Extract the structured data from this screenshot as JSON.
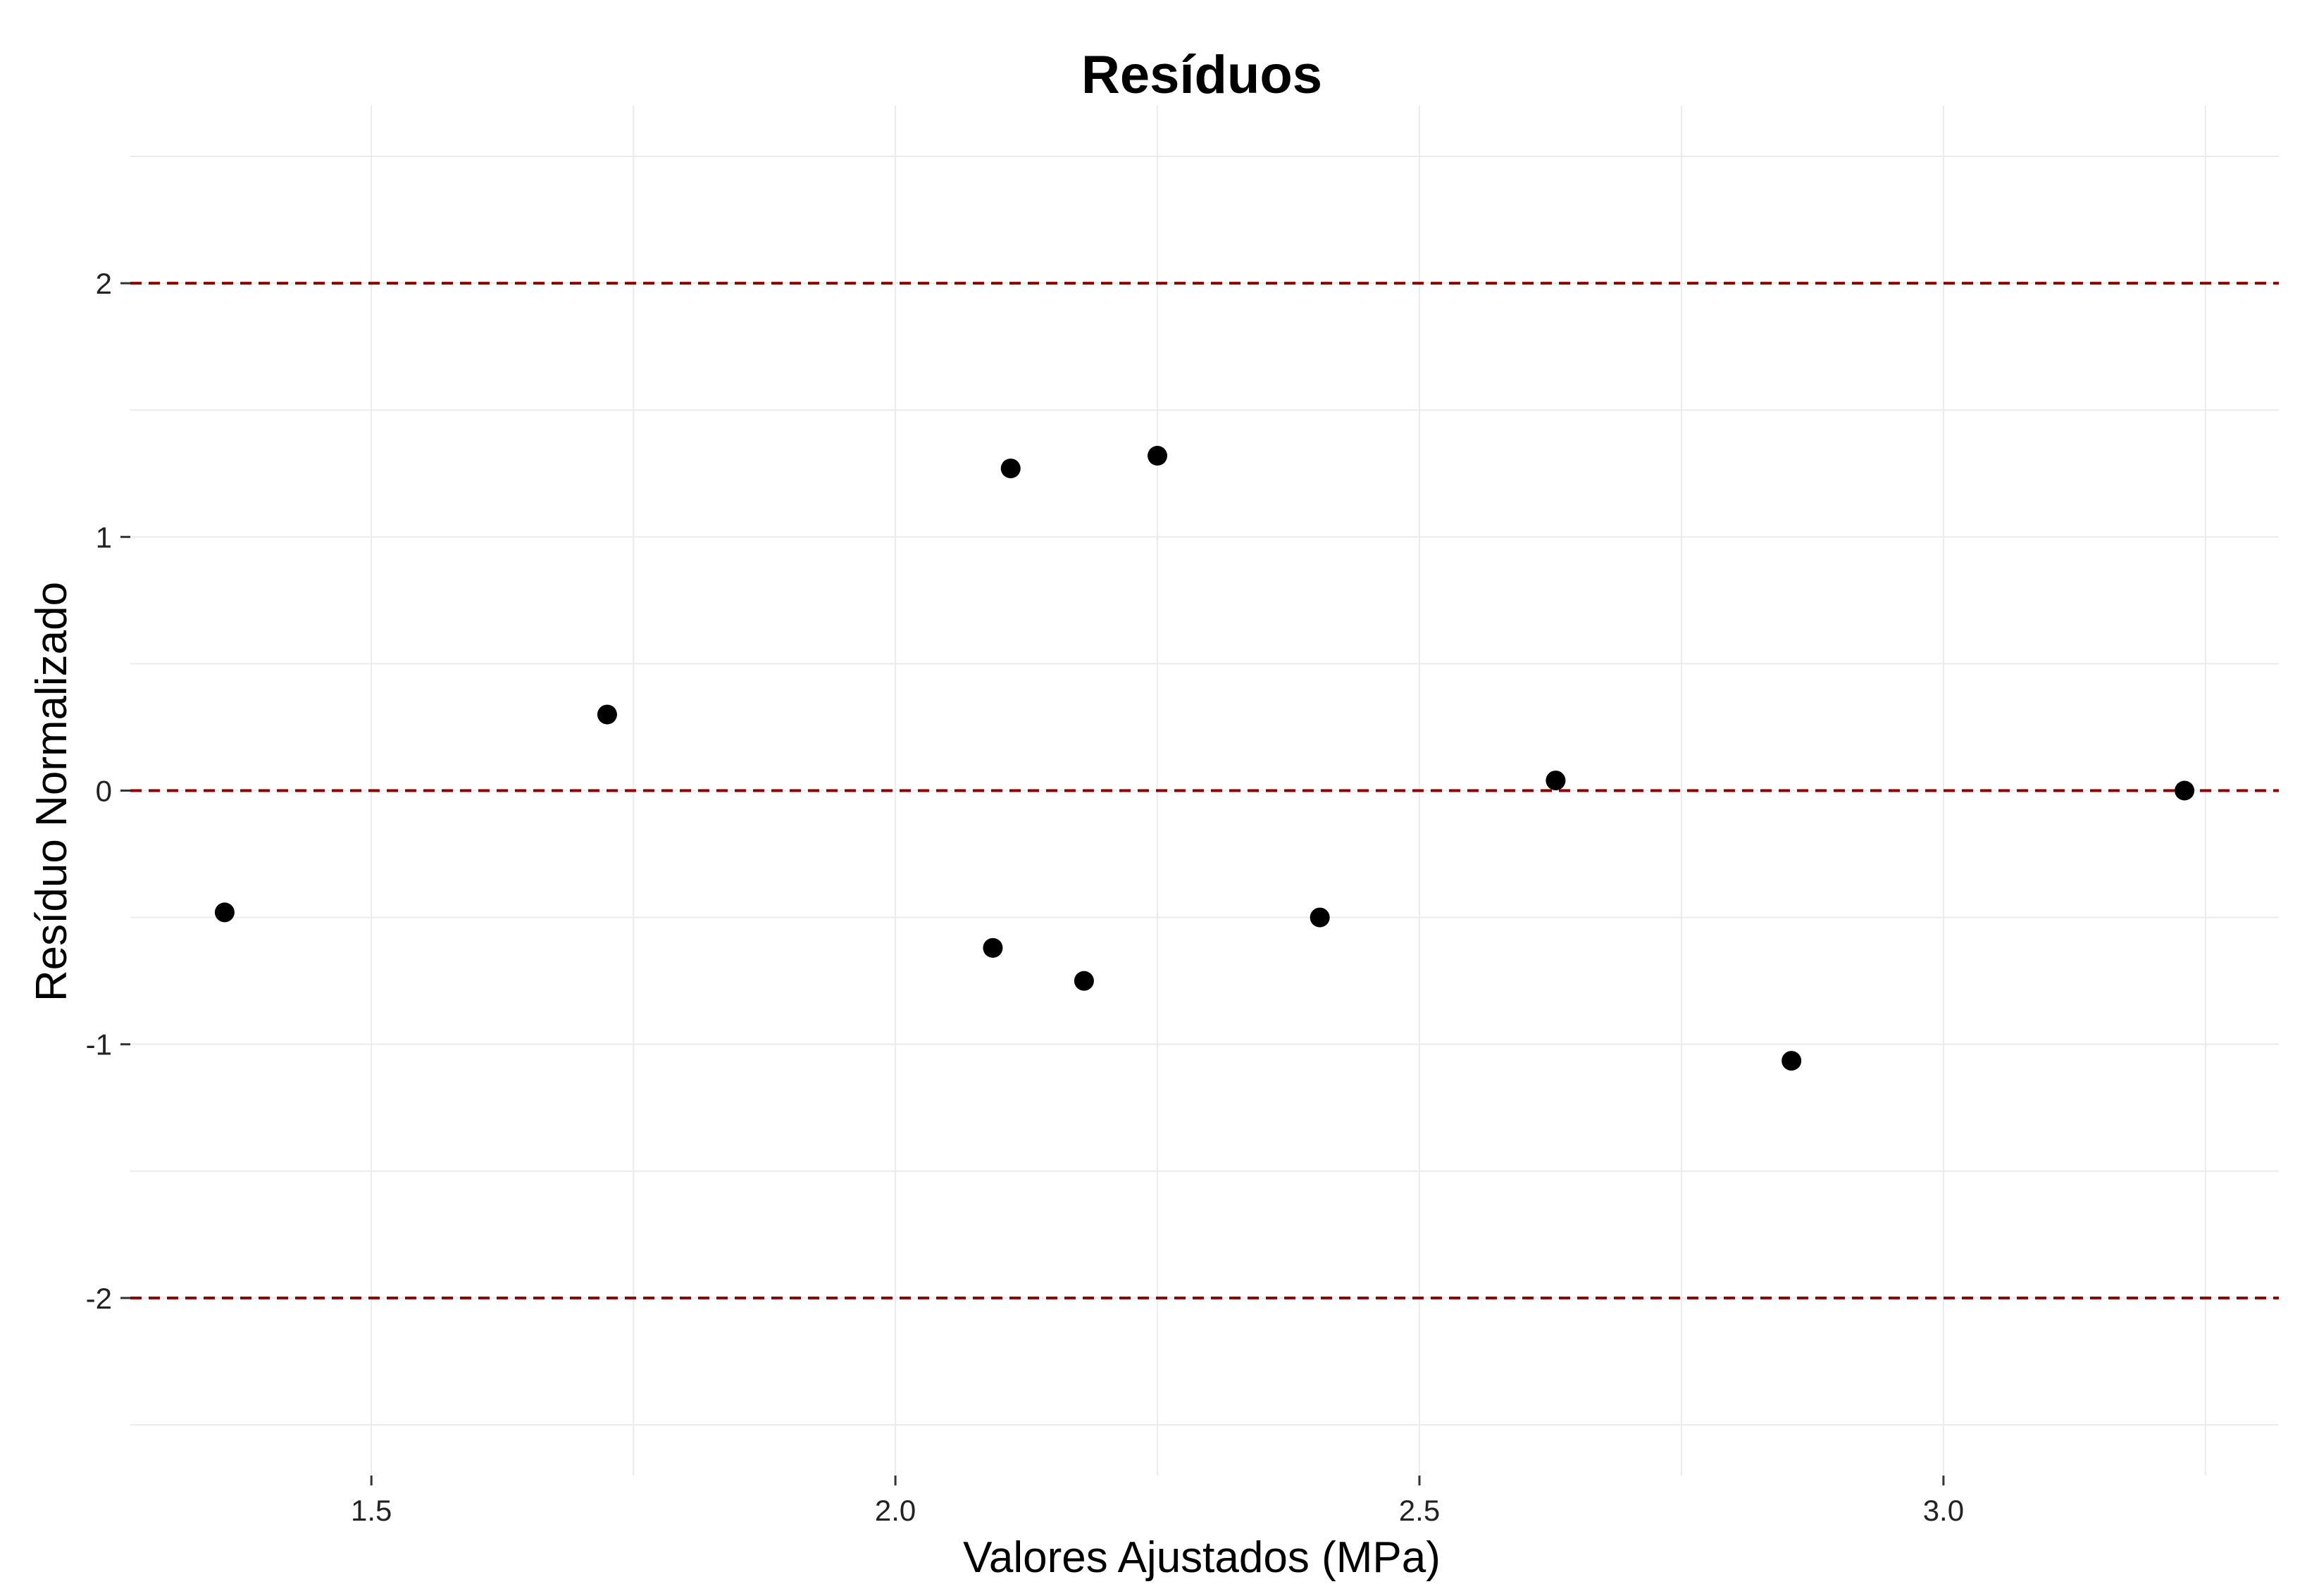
{
  "chart_data": {
    "type": "scatter",
    "title": "Resíduos",
    "xlabel": "Valores Ajustados (MPa)",
    "ylabel": "Resíduo Normalizado",
    "xlim": [
      1.27,
      3.32
    ],
    "ylim": [
      -2.7,
      2.7
    ],
    "x_ticks": [
      1.5,
      2.0,
      2.5,
      3.0
    ],
    "x_tick_labels": [
      "1.5",
      "2.0",
      "2.5",
      "3.0"
    ],
    "y_ticks": [
      -2,
      -1,
      0,
      1,
      2
    ],
    "y_tick_labels": [
      "-2",
      "-1",
      "0",
      "1",
      "2"
    ],
    "grid": true,
    "point_color": "#000000",
    "reference_line_color": "#8B0000",
    "reference_lines_y": [
      -2,
      0,
      2
    ],
    "points": [
      {
        "x": 1.36,
        "y": -0.48
      },
      {
        "x": 1.725,
        "y": 0.3
      },
      {
        "x": 2.093,
        "y": -0.62
      },
      {
        "x": 2.11,
        "y": 1.27
      },
      {
        "x": 2.18,
        "y": -0.75
      },
      {
        "x": 2.25,
        "y": 1.32
      },
      {
        "x": 2.405,
        "y": -0.5
      },
      {
        "x": 2.63,
        "y": 0.04
      },
      {
        "x": 2.855,
        "y": -1.065
      },
      {
        "x": 3.23,
        "y": 0.0
      }
    ]
  }
}
